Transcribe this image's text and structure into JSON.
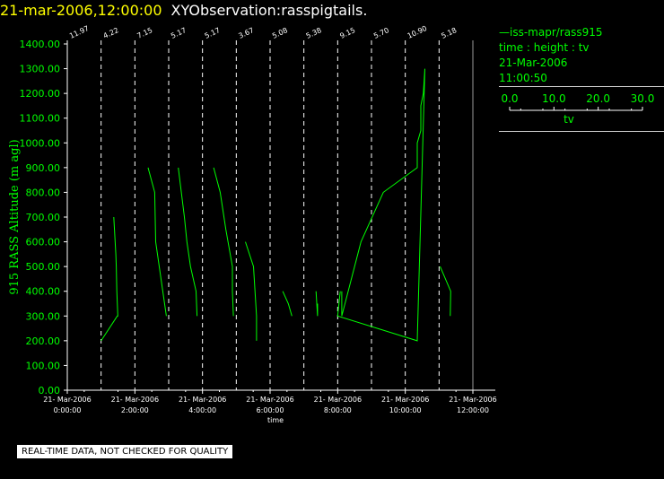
{
  "header": {
    "date_time": "21-mar-2006,12:00:00",
    "title": "XYObservation:rasspigtails."
  },
  "legend": {
    "source": "iss-mapr/rass915",
    "variables": "time : height : tv",
    "date": "21-Mar-2006",
    "time": "11:00:50",
    "scale_ticks": [
      "0.0",
      "10.0",
      "20.0",
      "30.0"
    ],
    "scale_label": "tv"
  },
  "disclaimer": "REAL-TIME DATA, NOT CHECKED FOR QUALITY",
  "colors": {
    "data": "#00ff00",
    "axis": "#ffffff",
    "date": "#ffff00"
  },
  "chart_data": {
    "type": "line",
    "ylabel": "915 RASS Altitude (m agl)",
    "xlabel": "time",
    "xlim": [
      0,
      12
    ],
    "ylim": [
      0,
      1400
    ],
    "y_ticks": [
      0,
      100,
      200,
      300,
      400,
      500,
      600,
      700,
      800,
      900,
      1000,
      1100,
      1200,
      1300,
      1400
    ],
    "y_tick_labels": [
      "0.00",
      "100.00",
      "200.00",
      "300.00",
      "400.00",
      "500.00",
      "600.00",
      "700.00",
      "800.00",
      "900.00",
      "1000.00",
      "1100.00",
      "1200.00",
      "1300.00",
      "1400.00"
    ],
    "x_ticks": [
      0,
      2,
      4,
      6,
      8,
      10,
      12
    ],
    "x_tick_dates": [
      "21- Mar-2006",
      "21- Mar-2006",
      "21- Mar-2006",
      "21- Mar-2006",
      "21- Mar-2006",
      "21- Mar-2006",
      "21- Mar-2006"
    ],
    "x_tick_times": [
      "0:00:00",
      "2:00:00",
      "4:00:00",
      "6:00:00",
      "8:00:00",
      "10:00:00",
      "12:00:00"
    ],
    "profiles": [
      {
        "hour": 0,
        "label": "11.97",
        "points": []
      },
      {
        "hour": 1,
        "label": "4.22",
        "points": [
          [
            2.5,
            700
          ],
          [
            2.9,
            550
          ],
          [
            3.0,
            500
          ],
          [
            3.1,
            400
          ],
          [
            3.3,
            300
          ],
          [
            3.2,
            300
          ],
          [
            0,
            200
          ]
        ]
      },
      {
        "hour": 2,
        "label": "7.15",
        "points": [
          [
            2.6,
            900
          ],
          [
            3.9,
            800
          ],
          [
            4.1,
            600
          ],
          [
            6.2,
            300
          ]
        ]
      },
      {
        "hour": 3,
        "label": "5.17",
        "points": [
          [
            1.9,
            900
          ],
          [
            3.1,
            700
          ],
          [
            3.6,
            600
          ],
          [
            4.3,
            500
          ],
          [
            5.4,
            400
          ],
          [
            5.6,
            300
          ]
        ]
      },
      {
        "hour": 4,
        "label": "5.17",
        "points": [
          [
            2.2,
            900
          ],
          [
            3.5,
            800
          ],
          [
            4.6,
            650
          ],
          [
            5.9,
            500
          ],
          [
            5.9,
            400
          ],
          [
            6.1,
            300
          ]
        ]
      },
      {
        "hour": 5,
        "label": "3.67",
        "points": [
          [
            1.8,
            600
          ],
          [
            3.4,
            500
          ],
          [
            4.0,
            300
          ],
          [
            4.0,
            200
          ]
        ]
      },
      {
        "hour": 6,
        "label": "5.08",
        "points": [
          [
            2.5,
            400
          ],
          [
            3.6,
            350
          ],
          [
            4.3,
            300
          ]
        ]
      },
      {
        "hour": 7,
        "label": "5.38",
        "points": [
          [
            2.4,
            400
          ],
          [
            2.7,
            300
          ],
          [
            2.7,
            350
          ]
        ]
      },
      {
        "hour": 8,
        "label": "9.15",
        "points": [
          [
            0.8,
            400
          ],
          [
            0.8,
            300
          ],
          [
            4.6,
            600
          ],
          [
            9.0,
            800
          ],
          [
            15.7,
            900
          ],
          [
            15.7,
            1000
          ],
          [
            16.4,
            1050
          ],
          [
            16.4,
            1150
          ],
          [
            16.9,
            1200
          ],
          [
            17.2,
            1300
          ],
          [
            15.7,
            200
          ],
          [
            0,
            300
          ],
          [
            0.5,
            400
          ]
        ]
      },
      {
        "hour": 9,
        "label": "5.70",
        "points": []
      },
      {
        "hour": 10,
        "label": "10.90",
        "points": []
      },
      {
        "hour": 11,
        "label": "5.18",
        "points": [
          [
            0.2,
            500
          ],
          [
            2.3,
            400
          ],
          [
            2.2,
            300
          ]
        ]
      }
    ]
  }
}
